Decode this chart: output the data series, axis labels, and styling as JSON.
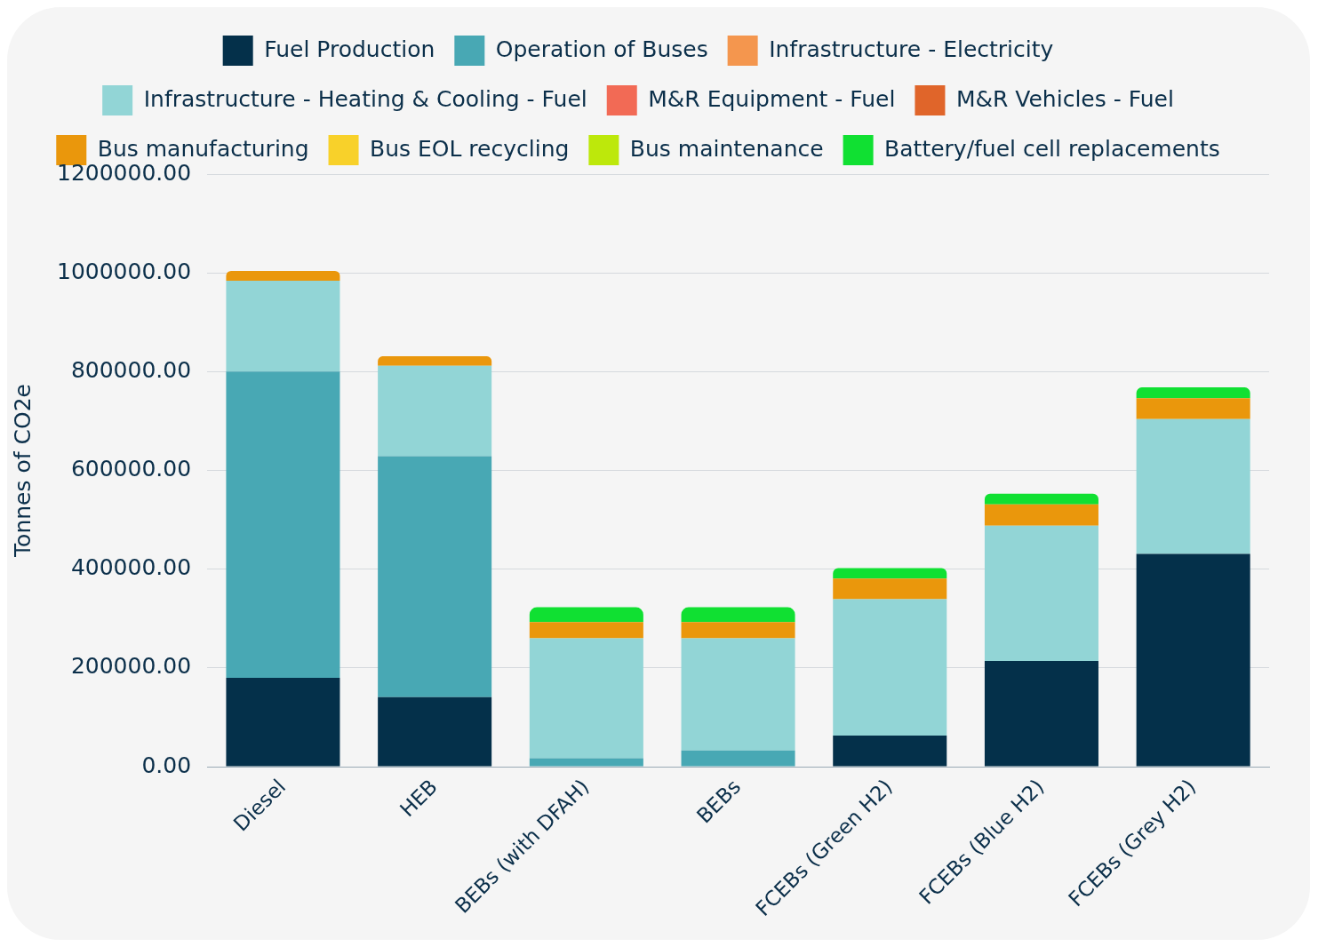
{
  "chart_data": {
    "type": "bar",
    "stacked": true,
    "ylabel": "Tonnes of CO2e",
    "legend": "top",
    "grid": "y",
    "categories": [
      "Diesel",
      "HEB",
      "BEBs (with DFAH)",
      "BEBs",
      "FCEBs (Green H2)",
      "FCEBs (Blue H2)",
      "FCEBs (Grey H2)"
    ],
    "ylim": [
      0,
      1200000
    ],
    "yticks": [
      {
        "value": 0,
        "label": "0.00"
      },
      {
        "value": 200000,
        "label": "200000.00"
      },
      {
        "value": 400000,
        "label": "400000.00"
      },
      {
        "value": 600000,
        "label": "600000.00"
      },
      {
        "value": 800000,
        "label": "800000.00"
      },
      {
        "value": 1000000,
        "label": "1000000.00"
      },
      {
        "value": 1200000,
        "label": "1200000.00"
      }
    ],
    "series": [
      {
        "name": "Fuel Production",
        "color": "#04304a",
        "values": [
          180000,
          141000,
          0,
          0,
          63000,
          214000,
          431000
        ]
      },
      {
        "name": "Operation of Buses",
        "color": "#48a8b4",
        "values": [
          620000,
          488000,
          17000,
          33000,
          0,
          0,
          0
        ]
      },
      {
        "name": "Infrastructure - Electricity",
        "color": "#f4964e",
        "values": [
          0,
          0,
          0,
          0,
          0,
          0,
          0
        ]
      },
      {
        "name": "Infrastructure - Heating & Cooling - Fuel",
        "color": "#92d5d6",
        "values": [
          184000,
          183000,
          243000,
          227000,
          276000,
          274000,
          273000
        ]
      },
      {
        "name": "M&R Equipment - Fuel",
        "color": "#f26a55",
        "values": [
          0,
          0,
          0,
          0,
          0,
          0,
          0
        ]
      },
      {
        "name": "M&R Vehicles - Fuel",
        "color": "#e0652a",
        "values": [
          0,
          0,
          0,
          0,
          0,
          0,
          0
        ]
      },
      {
        "name": "Bus manufacturing",
        "color": "#ea970c",
        "values": [
          20000,
          19000,
          33000,
          33000,
          42000,
          43000,
          42000
        ]
      },
      {
        "name": "Bus EOL recycling",
        "color": "#f8d12a",
        "values": [
          0,
          0,
          0,
          0,
          0,
          0,
          0
        ]
      },
      {
        "name": "Bus maintenance",
        "color": "#bde80b",
        "values": [
          0,
          0,
          0,
          0,
          0,
          0,
          0
        ]
      },
      {
        "name": "Battery/fuel cell replacements",
        "color": "#10e032",
        "values": [
          0,
          0,
          30000,
          30000,
          21000,
          22000,
          22000
        ]
      }
    ]
  }
}
